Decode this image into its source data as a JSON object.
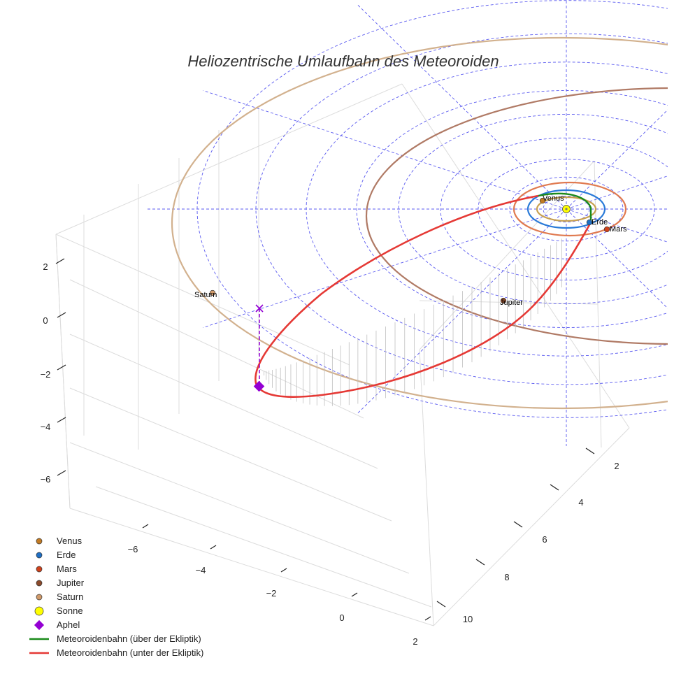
{
  "chart_data": {
    "type": "scatter",
    "projection": "3d",
    "title": "Heliozentrische Umlaufbahn des Meteoroiden",
    "axes": {
      "x": {
        "ticks": [
          "−6",
          "−4",
          "−2",
          "0",
          "2"
        ]
      },
      "y": {
        "ticks": [
          "2",
          "4",
          "6",
          "8",
          "10"
        ]
      },
      "z": {
        "ticks": [
          "2",
          "0",
          "−2",
          "−4",
          "−6"
        ]
      }
    },
    "grid": true,
    "legend_position": "bottom-left",
    "planets": [
      {
        "name": "Venus",
        "color": "#c27b24",
        "orbit_color": "#c8a050",
        "radius_au": 0.72
      },
      {
        "name": "Erde",
        "color": "#1f6fc4",
        "orbit_color": "#2a7ad8",
        "radius_au": 1.0
      },
      {
        "name": "Mars",
        "color": "#d0421c",
        "orbit_color": "#e07a50",
        "radius_au": 1.52
      },
      {
        "name": "Jupiter",
        "color": "#8b4a2b",
        "orbit_color": "#b07a65",
        "radius_au": 5.2
      },
      {
        "name": "Saturn",
        "color": "#d09a6a",
        "orbit_color": "#d2b18e",
        "radius_au": 9.54
      }
    ],
    "sun": {
      "name": "Sonne",
      "color": "#ffff00"
    },
    "aphel": {
      "name": "Aphel",
      "color": "#9400d3"
    },
    "meteoroid_orbit": {
      "above": {
        "name": "Meteoroidenbahn (über der Ekliptik)",
        "color": "#1a8a1a"
      },
      "below": {
        "name": "Meteoroidenbahn (unter der Ekliptik)",
        "color": "#e53935"
      }
    }
  },
  "legend": [
    {
      "label": "Venus",
      "kind": "dot",
      "color": "#c27b24"
    },
    {
      "label": "Erde",
      "kind": "dot",
      "color": "#1f6fc4"
    },
    {
      "label": "Mars",
      "kind": "dot",
      "color": "#d0421c"
    },
    {
      "label": "Jupiter",
      "kind": "dot",
      "color": "#8b4a2b"
    },
    {
      "label": "Saturn",
      "kind": "dot",
      "color": "#d09a6a"
    },
    {
      "label": "Sonne",
      "kind": "bigdot",
      "color": "#ffff00"
    },
    {
      "label": "Aphel",
      "kind": "diamond",
      "color": "#9400d3"
    },
    {
      "label": "Meteoroidenbahn (über der Ekliptik)",
      "kind": "line",
      "color": "#1a8a1a"
    },
    {
      "label": "Meteoroidenbahn (unter der Ekliptik)",
      "kind": "line",
      "color": "#e53935"
    }
  ]
}
